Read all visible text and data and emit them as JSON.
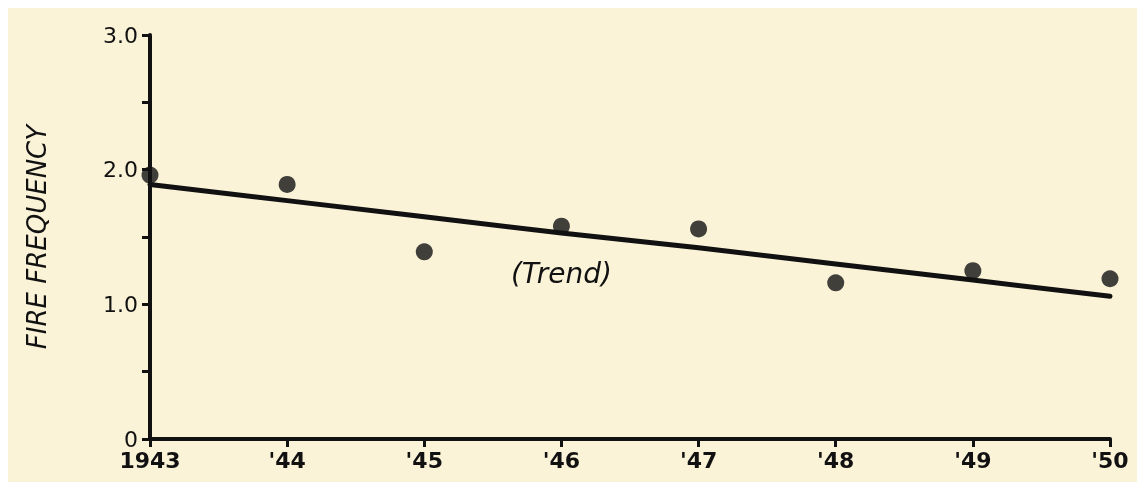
{
  "chart_data": {
    "type": "scatter",
    "ylabel": "FIRE FREQUENCY",
    "categories": [
      "1943",
      "'44",
      "'45",
      "'46",
      "'47",
      "'48",
      "'49",
      "'50"
    ],
    "series": [
      {
        "color": "#111111",
        "marker": "circle",
        "values": [
          1.96,
          1.89,
          1.39,
          1.58,
          1.56,
          1.16,
          1.25,
          1.19
        ]
      },
      {
        "type": "line",
        "color": "#111111",
        "marker": "none",
        "line_style": "solid",
        "values": [
          1.89,
          1.77,
          1.65,
          1.53,
          1.42,
          1.3,
          1.18,
          1.06
        ]
      }
    ],
    "ylim": [
      0,
      3
    ],
    "yticks": [
      {
        "value": 0,
        "label": "0"
      },
      {
        "value": 0.5,
        "label": null
      },
      {
        "value": 1,
        "label": "1.0"
      },
      {
        "value": 1.5,
        "label": null
      },
      {
        "value": 2,
        "label": "2.0"
      },
      {
        "value": 2.5,
        "label": null
      },
      {
        "value": 3,
        "label": "3.0"
      }
    ],
    "annotations": [
      "(Trend)"
    ]
  }
}
